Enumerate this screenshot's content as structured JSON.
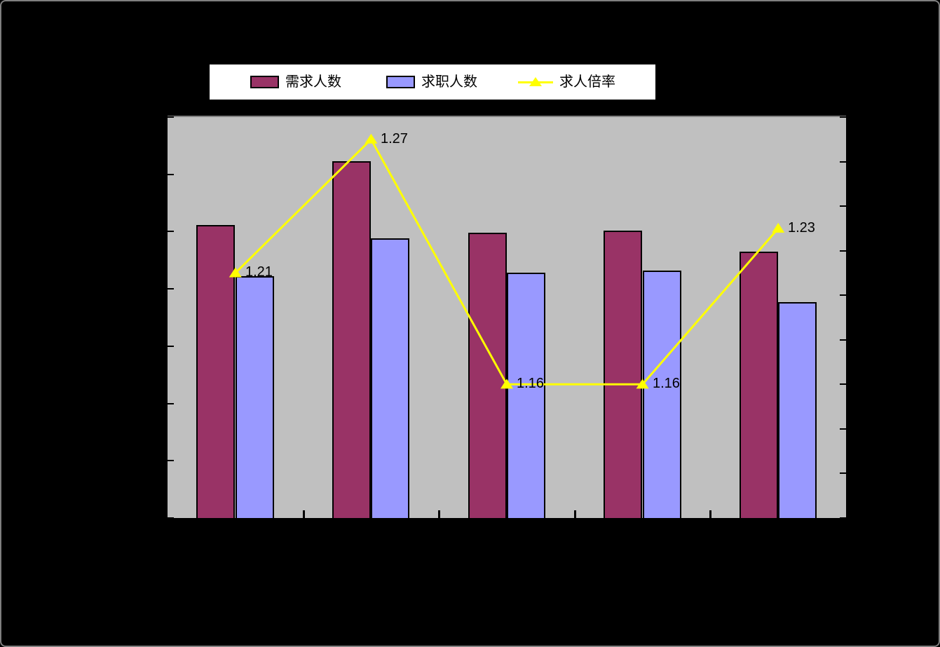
{
  "canvas": {
    "background": "#000000",
    "border_color": "#7f7f7f"
  },
  "legend": {
    "position": "top",
    "background": "#FFFFFF",
    "border_color": "#000000",
    "items": [
      {
        "label": "需求人数",
        "swatch_type": "bar",
        "color": "#993366"
      },
      {
        "label": "求职人数",
        "swatch_type": "bar",
        "color": "#9999FF"
      },
      {
        "label": "求人倍率",
        "swatch_type": "line-triangle",
        "color": "#FFFF00"
      }
    ]
  },
  "chart_data": {
    "type": "combo",
    "categories": [
      "",
      "",
      "",
      "",
      ""
    ],
    "x_axis": {
      "labels_visible": false,
      "boundary_ticks": 4,
      "tick_color": "#000000"
    },
    "left_axis": {
      "labels_visible": false,
      "tick_count": 8,
      "tick_color": "#000000"
    },
    "right_axis": {
      "labels_visible": false,
      "tick_count": 10,
      "inferred_min": 1.1,
      "inferred_max": 1.28,
      "inferred_step": 0.02,
      "tick_color": "#000000"
    },
    "plot": {
      "background": "#C0C0C0",
      "top_border_color": "#808080",
      "bottom_axis_color": "#000000"
    },
    "legend_position": "top",
    "grid": "off",
    "series": [
      {
        "name": "需求人数",
        "type": "bar",
        "color": "#993366",
        "border_color": "#000000",
        "height_fraction_of_plot": [
          0.731,
          0.889,
          0.711,
          0.717,
          0.664
        ]
      },
      {
        "name": "求职人数",
        "type": "bar",
        "color": "#9999FF",
        "border_color": "#000000",
        "height_fraction_of_plot": [
          0.603,
          0.698,
          0.612,
          0.617,
          0.539
        ]
      },
      {
        "name": "求人倍率",
        "type": "line",
        "axis": "right",
        "color": "#FFFF00",
        "marker": "triangle",
        "values": [
          1.21,
          1.27,
          1.16,
          1.16,
          1.23
        ],
        "data_labels": [
          "1.21",
          "1.27",
          "1.16",
          "1.16",
          "1.23"
        ],
        "data_label_color": "#000000"
      }
    ]
  }
}
